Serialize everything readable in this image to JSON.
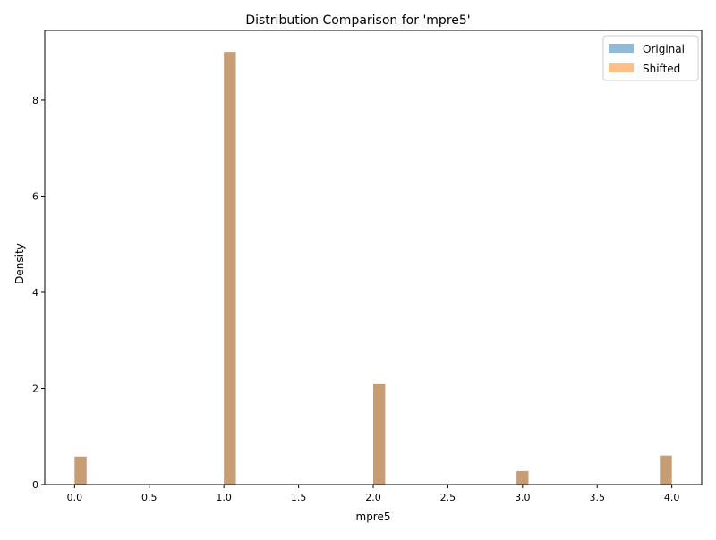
{
  "chart_data": {
    "type": "bar",
    "title": "Distribution Comparison for 'mpre5'",
    "xlabel": "mpre5",
    "ylabel": "Density",
    "xlim": [
      -0.2,
      4.2
    ],
    "ylim": [
      0,
      9.45
    ],
    "x_ticks": [
      0.0,
      0.5,
      1.0,
      1.5,
      2.0,
      2.5,
      3.0,
      3.5,
      4.0
    ],
    "x_tick_labels": [
      "0.0",
      "0.5",
      "1.0",
      "1.5",
      "2.0",
      "2.5",
      "3.0",
      "3.5",
      "4.0"
    ],
    "y_ticks": [
      0,
      2,
      4,
      6,
      8
    ],
    "y_tick_labels": [
      "0",
      "2",
      "4",
      "6",
      "8"
    ],
    "bin_width": 0.08,
    "grid": false,
    "legend_position": "upper right",
    "series": [
      {
        "name": "Original",
        "color": "#1f77b4",
        "opacity": 0.5,
        "x": [
          0.04,
          1.04,
          2.04,
          3.0,
          3.96
        ],
        "values": [
          0.58,
          9.0,
          2.1,
          0.28,
          0.6
        ]
      },
      {
        "name": "Shifted",
        "color": "#ff7f0e",
        "opacity": 0.5,
        "x": [
          0.04,
          1.04,
          2.04,
          3.0,
          3.96
        ],
        "values": [
          0.58,
          9.0,
          2.1,
          0.28,
          0.6
        ]
      }
    ]
  }
}
